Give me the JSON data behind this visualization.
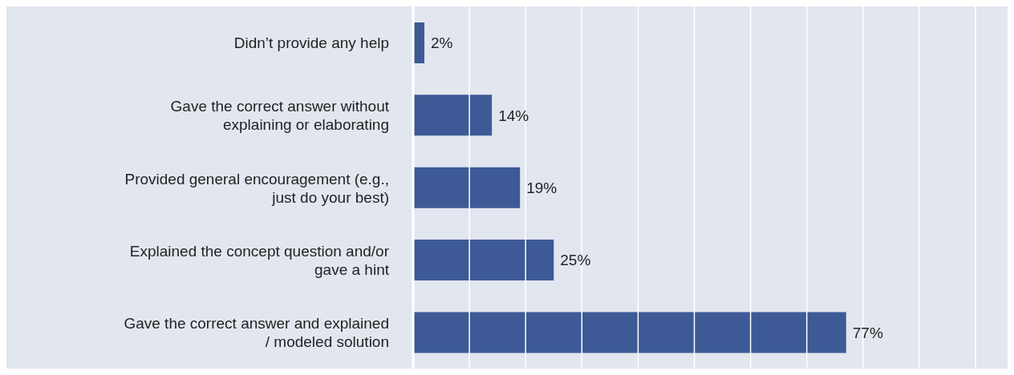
{
  "chart_data": {
    "type": "bar",
    "orientation": "horizontal",
    "categories": [
      "Didn’t provide any help",
      "Gave the correct answer without explaining or elaborating",
      "Provided general encouragement (e.g., just do your best)",
      "Explained the concept question and/or gave a hint",
      "Gave the correct answer and explained / modeled solution"
    ],
    "values": [
      2,
      14,
      19,
      25,
      77
    ],
    "value_labels": [
      "2%",
      "14%",
      "19%",
      "25%",
      "77%"
    ],
    "color": "#3d5a96",
    "xlim": [
      0,
      100
    ],
    "xticks": [
      {
        "value": 0,
        "label": null
      },
      {
        "value": 10,
        "label": null
      },
      {
        "value": 20,
        "label": null
      },
      {
        "value": 30,
        "label": null
      },
      {
        "value": 40,
        "label": null
      },
      {
        "value": 50,
        "label": null
      },
      {
        "value": 60,
        "label": null
      },
      {
        "value": 70,
        "label": null
      },
      {
        "value": 80,
        "label": null
      },
      {
        "value": 90,
        "label": null
      },
      {
        "value": 100,
        "label": null
      }
    ],
    "grid": "x",
    "legend": false,
    "tick_labels": "y"
  }
}
